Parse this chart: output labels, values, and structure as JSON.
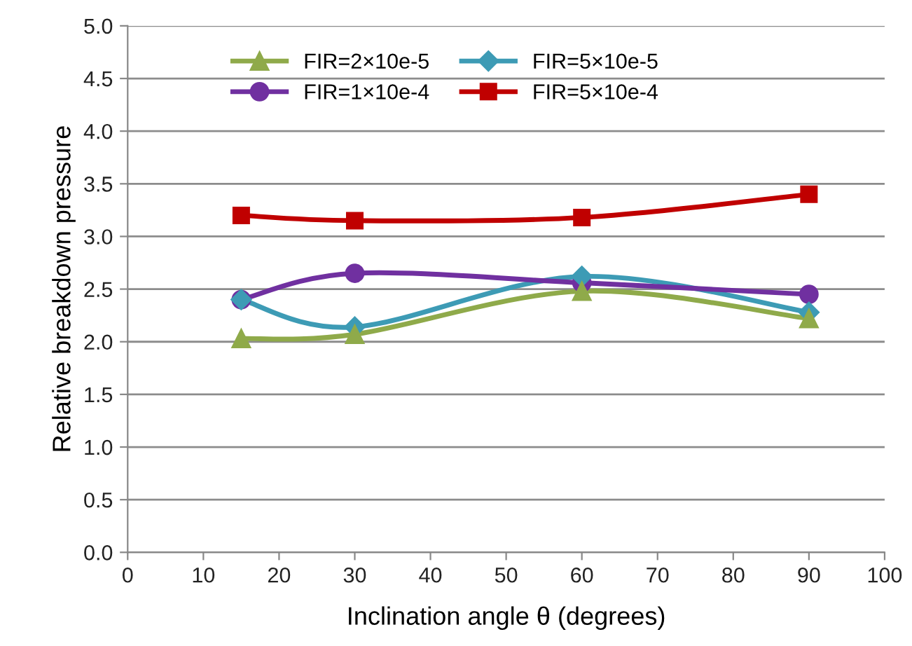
{
  "chart_data": {
    "type": "line",
    "xlabel": "Inclination angle θ (degrees)",
    "ylabel": "Relative breakdown pressure",
    "x": [
      15,
      30,
      60,
      90
    ],
    "series": [
      {
        "name": "FIR=2×10e-5",
        "color": "#8faa4a",
        "marker": "triangle",
        "values": [
          2.03,
          2.07,
          2.48,
          2.22
        ]
      },
      {
        "name": "FIR=5×10e-5",
        "color": "#3d9bb5",
        "marker": "diamond",
        "values": [
          2.4,
          2.14,
          2.62,
          2.28
        ]
      },
      {
        "name": "FIR=1×10e-4",
        "color": "#7030a0",
        "marker": "circle",
        "values": [
          2.4,
          2.65,
          2.56,
          2.45
        ]
      },
      {
        "name": "FIR=5×10e-4",
        "color": "#c00000",
        "marker": "square",
        "values": [
          3.2,
          3.15,
          3.18,
          3.4
        ]
      }
    ],
    "xlim": [
      0,
      100
    ],
    "xticks": [
      0,
      10,
      20,
      30,
      40,
      50,
      60,
      70,
      80,
      90,
      100
    ],
    "ylim": [
      0,
      5
    ],
    "yticks": [
      {
        "value": 0,
        "label": "0.0"
      },
      {
        "value": 0.5,
        "label": "0.5"
      },
      {
        "value": 1,
        "label": "1.0"
      },
      {
        "value": 1.5,
        "label": "1.5"
      },
      {
        "value": 2,
        "label": "2.0"
      },
      {
        "value": 2.5,
        "label": "2.5"
      },
      {
        "value": 3,
        "label": "3.0"
      },
      {
        "value": 3.5,
        "label": "3.5"
      },
      {
        "value": 4,
        "label": "4.0"
      },
      {
        "value": 4.5,
        "label": "4.5"
      },
      {
        "value": 5,
        "label": "5.0"
      }
    ],
    "grid": "y",
    "legend": "top",
    "line_style": "solid"
  }
}
